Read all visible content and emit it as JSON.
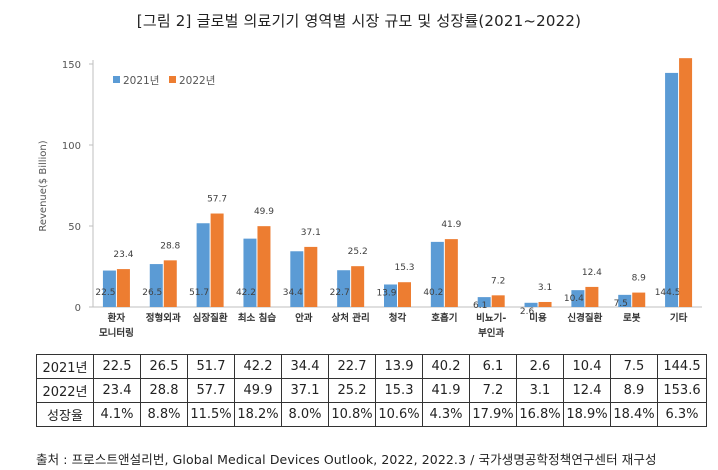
{
  "title": "[그림 2] 글로벌 의료기기 영역별 시장 규모 및 성장률(2021~2022)",
  "source": "출처 : 프로스트앤설리번, Global Medical Devices Outlook, 2022, 2022.3 / 국가생명공학정책연구센터 재구성",
  "colors": {
    "y2021": "#5B9BD5",
    "y2022": "#ED7D31"
  },
  "chart_data": {
    "type": "bar",
    "title": "[그림 2] 글로벌 의료기기 영역별 시장 규모 및 성장률(2021~2022)",
    "ylabel": "Revenue($ Billion)",
    "xlabel": "",
    "ylim": [
      0,
      150
    ],
    "yticks": [
      0,
      50,
      100,
      150
    ],
    "grid": false,
    "legend_position": "top-left",
    "categories": [
      [
        "환자",
        "모니터링"
      ],
      [
        "정형외과"
      ],
      [
        "심장질환"
      ],
      [
        "최소 침습"
      ],
      [
        "안과"
      ],
      [
        "상처 관리"
      ],
      [
        "청각"
      ],
      [
        "호흡기"
      ],
      [
        "비뇨기-",
        "부인과"
      ],
      [
        "미용"
      ],
      [
        "신경질환"
      ],
      [
        "로봇"
      ],
      [
        "기타"
      ]
    ],
    "series": [
      {
        "name": "2021년",
        "values": [
          22.5,
          26.5,
          51.7,
          42.2,
          34.4,
          22.7,
          13.9,
          40.2,
          6.1,
          2.6,
          10.4,
          7.5,
          144.5
        ],
        "labels": [
          "22.5",
          "26.5",
          "51.7",
          "42.2",
          "34.4",
          "22.7",
          "13.9",
          "40.2",
          "6.1",
          "2.6",
          "10.4",
          "7.5",
          "144.5"
        ]
      },
      {
        "name": "2022년",
        "values": [
          23.4,
          28.8,
          57.7,
          49.9,
          37.1,
          25.2,
          15.3,
          41.9,
          7.2,
          3.1,
          12.4,
          8.9,
          153.6
        ],
        "labels": [
          "23.4",
          "28.8",
          "57.7",
          "49.9",
          "37.1",
          "25.2",
          "15.3",
          "41.9",
          "7.2",
          "3.1",
          "12.4",
          "8.9",
          ""
        ]
      }
    ]
  },
  "table": {
    "rows": [
      {
        "label": "2021년",
        "values": [
          "22.5",
          "26.5",
          "51.7",
          "42.2",
          "34.4",
          "22.7",
          "13.9",
          "40.2",
          "6.1",
          "2.6",
          "10.4",
          "7.5",
          "144.5"
        ]
      },
      {
        "label": "2022년",
        "values": [
          "23.4",
          "28.8",
          "57.7",
          "49.9",
          "37.1",
          "25.2",
          "15.3",
          "41.9",
          "7.2",
          "3.1",
          "12.4",
          "8.9",
          "153.6"
        ]
      },
      {
        "label": "성장율",
        "values": [
          "4.1%",
          "8.8%",
          "11.5%",
          "18.2%",
          "8.0%",
          "10.8%",
          "10.6%",
          "4.3%",
          "17.9%",
          "16.8%",
          "18.9%",
          "18.4%",
          "6.3%"
        ]
      }
    ]
  }
}
